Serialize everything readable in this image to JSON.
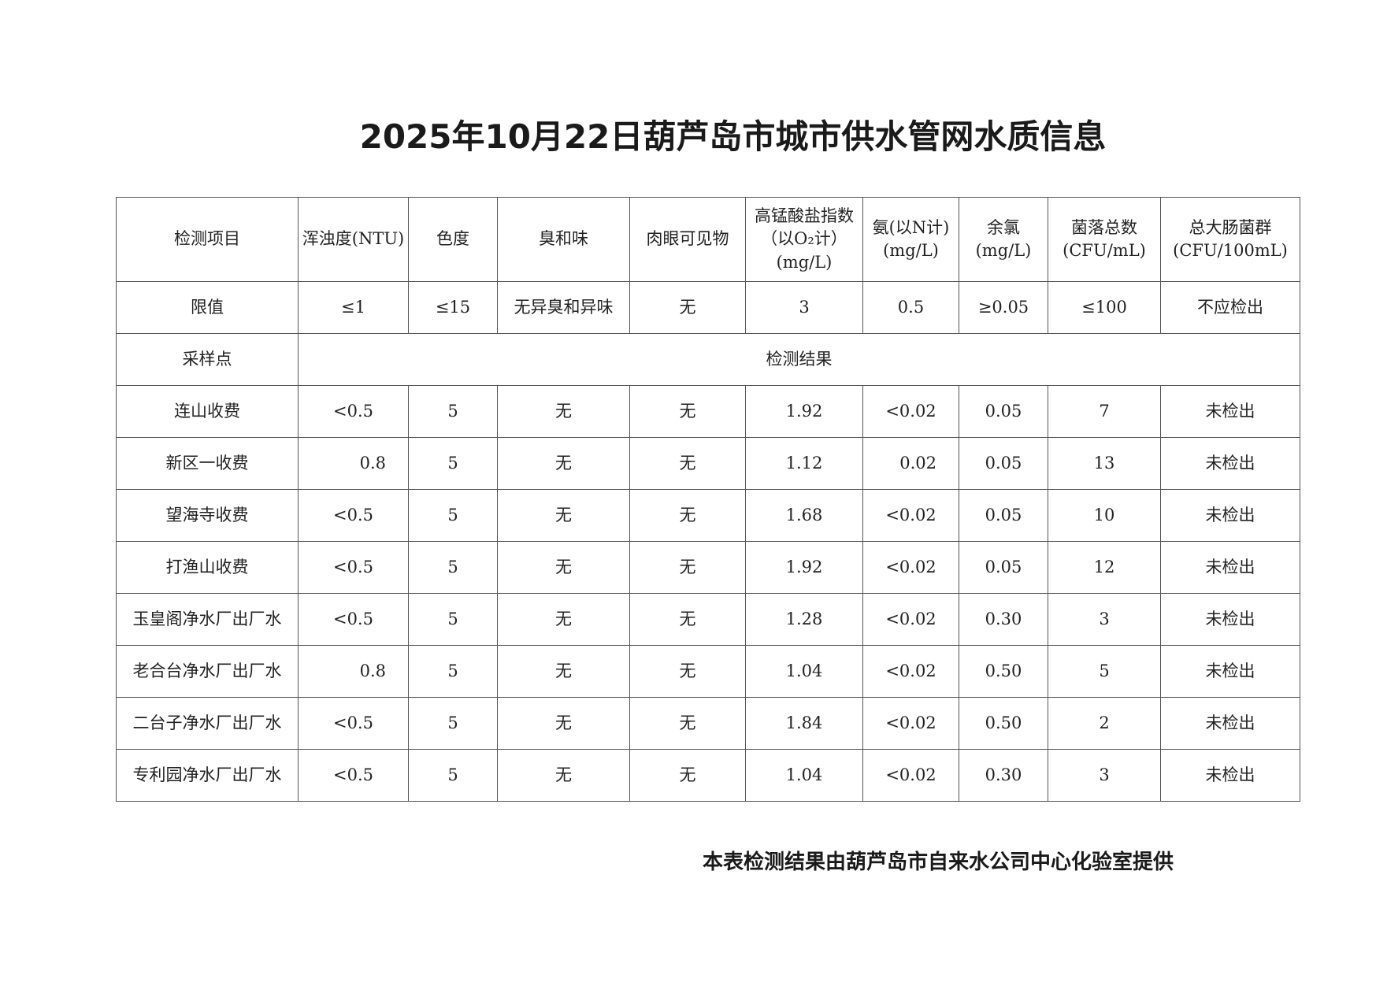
{
  "title": "2025年10月22日葫芦岛市城市供水管网水质信息",
  "table": {
    "headers": [
      "检测项目",
      "浑浊度(NTU)",
      "色度",
      "臭和味",
      "肉眼可见物",
      "高锰酸盐指数（以O₂计）(mg/L)",
      "氨(以N计)(mg/L)",
      "余氯(mg/L)",
      "菌落总数(CFU/mL)",
      "总大肠菌群(CFU/100mL)"
    ],
    "limits": [
      "限值",
      "≤1",
      "≤15",
      "无异臭和异味",
      "无",
      "3",
      "0.5",
      "≥0.05",
      "≤100",
      "不应检出"
    ],
    "section": [
      "采样点",
      "检测结果"
    ],
    "rows": [
      [
        "连山收费",
        "<0.5",
        "5",
        "无",
        "无",
        "1.92",
        "<0.02",
        "0.05",
        "7",
        "未检出"
      ],
      [
        "新区一收费",
        "0.8",
        "5",
        "无",
        "无",
        "1.12",
        "0.02",
        "0.05",
        "13",
        "未检出"
      ],
      [
        "望海寺收费",
        "<0.5",
        "5",
        "无",
        "无",
        "1.68",
        "<0.02",
        "0.05",
        "10",
        "未检出"
      ],
      [
        "打渔山收费",
        "<0.5",
        "5",
        "无",
        "无",
        "1.92",
        "<0.02",
        "0.05",
        "12",
        "未检出"
      ],
      [
        "玉皇阁净水厂出厂水",
        "<0.5",
        "5",
        "无",
        "无",
        "1.28",
        "<0.02",
        "0.30",
        "3",
        "未检出"
      ],
      [
        "老合台净水厂出厂水",
        "0.8",
        "5",
        "无",
        "无",
        "1.04",
        "<0.02",
        "0.50",
        "5",
        "未检出"
      ],
      [
        "二台子净水厂出厂水",
        "<0.5",
        "5",
        "无",
        "无",
        "1.84",
        "<0.02",
        "0.50",
        "2",
        "未检出"
      ],
      [
        "专利园净水厂出厂水",
        "<0.5",
        "5",
        "无",
        "无",
        "1.04",
        "<0.02",
        "0.30",
        "3",
        "未检出"
      ]
    ]
  },
  "footer": "本表检测结果由葫芦岛市自来水公司中心化验室提供"
}
